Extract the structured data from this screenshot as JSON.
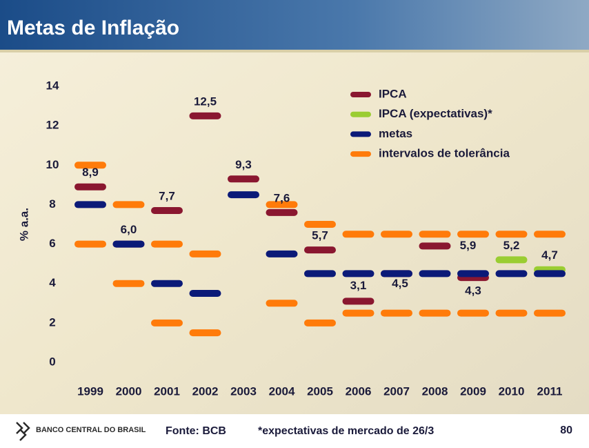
{
  "chart_data": {
    "type": "range-dash",
    "title": "Metas de Inflação",
    "y_label": "% a.a.",
    "categories": [
      "1999",
      "2000",
      "2001",
      "2002",
      "2003",
      "2004",
      "2005",
      "2006",
      "2007",
      "2008",
      "2009",
      "2010",
      "2011"
    ],
    "ylim": [
      0,
      14
    ],
    "yticks": [
      0,
      2,
      4,
      6,
      8,
      10,
      12,
      14
    ],
    "legend": "top-right",
    "series": [
      {
        "name": "IPCA",
        "color": "#8a1730",
        "values": [
          8.9,
          6.0,
          7.7,
          12.5,
          9.3,
          7.6,
          5.7,
          3.1,
          4.5,
          5.9,
          4.3,
          null,
          null
        ],
        "value_labels": [
          "8,9",
          "6,0",
          "7,7",
          "12,5",
          "9,3",
          "7,6",
          "5,7",
          "3,1",
          "4,5",
          "5,9",
          "4,3",
          null,
          null
        ]
      },
      {
        "name": "IPCA (expectativas)*",
        "color": "#9acd32",
        "values": [
          null,
          null,
          null,
          null,
          null,
          null,
          null,
          null,
          null,
          null,
          null,
          5.2,
          4.7
        ],
        "value_labels": [
          null,
          null,
          null,
          null,
          null,
          null,
          null,
          null,
          null,
          null,
          null,
          "5,2",
          "4,7"
        ]
      },
      {
        "name": "metas",
        "color": "#0b1a78",
        "values": [
          8,
          6,
          4,
          3.5,
          8.5,
          5.5,
          4.5,
          4.5,
          4.5,
          4.5,
          4.5,
          4.5,
          4.5
        ]
      },
      {
        "name": "intervalos de tolerância",
        "color": "#ff7b0a",
        "lower": [
          6,
          4,
          2,
          1.5,
          null,
          3,
          2,
          2.5,
          2.5,
          2.5,
          2.5,
          2.5,
          2.5
        ],
        "upper": [
          10,
          8,
          6,
          5.5,
          null,
          8,
          7,
          6.5,
          6.5,
          6.5,
          6.5,
          6.5,
          6.5
        ]
      }
    ]
  },
  "footer": {
    "logo_text": "BANCO CENTRAL DO BRASIL",
    "source": "Fonte: BCB",
    "note": "*expectativas de mercado de 26/3",
    "page": "80"
  }
}
